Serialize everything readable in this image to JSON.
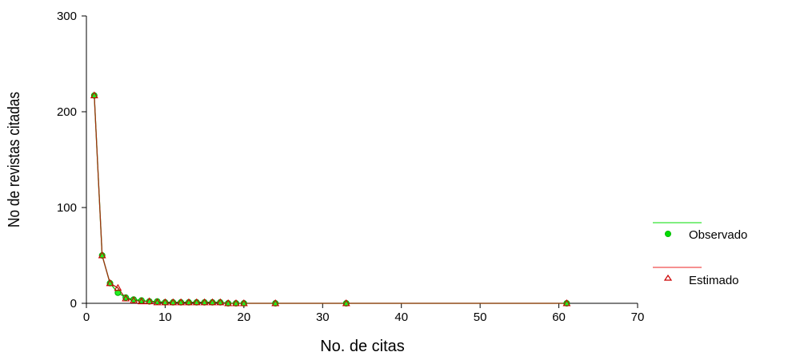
{
  "chart_data": {
    "type": "line",
    "xlabel": "No. de citas",
    "ylabel": "No de revistas citadas",
    "xlim": [
      0,
      70
    ],
    "ylim": [
      0,
      300
    ],
    "xticks": [
      0,
      10,
      20,
      30,
      40,
      50,
      60,
      70
    ],
    "yticks": [
      0,
      100,
      200,
      300
    ],
    "grid": false,
    "legend_position": "right",
    "series": [
      {
        "name": "Observado",
        "color": "#00dd00",
        "marker": "circle",
        "x": [
          1,
          2,
          3,
          4,
          5,
          6,
          7,
          8,
          9,
          10,
          11,
          12,
          13,
          14,
          15,
          16,
          17,
          18,
          19,
          20,
          24,
          33,
          61
        ],
        "y": [
          217,
          50,
          21,
          11,
          6,
          4,
          3,
          2,
          2,
          1,
          1,
          1,
          1,
          1,
          1,
          1,
          1,
          0,
          0,
          0,
          0,
          0,
          0
        ]
      },
      {
        "name": "Estimado",
        "color": "#cc0000",
        "marker": "triangle",
        "x": [
          1,
          2,
          3,
          4,
          5,
          6,
          7,
          8,
          9,
          10,
          11,
          12,
          13,
          14,
          15,
          16,
          17,
          18,
          19,
          20,
          24,
          33,
          61
        ],
        "y": [
          217,
          50,
          21,
          16,
          5,
          3,
          2,
          2,
          1,
          1,
          1,
          1,
          1,
          1,
          1,
          1,
          1,
          0,
          0,
          0,
          0,
          0,
          0
        ]
      }
    ]
  }
}
